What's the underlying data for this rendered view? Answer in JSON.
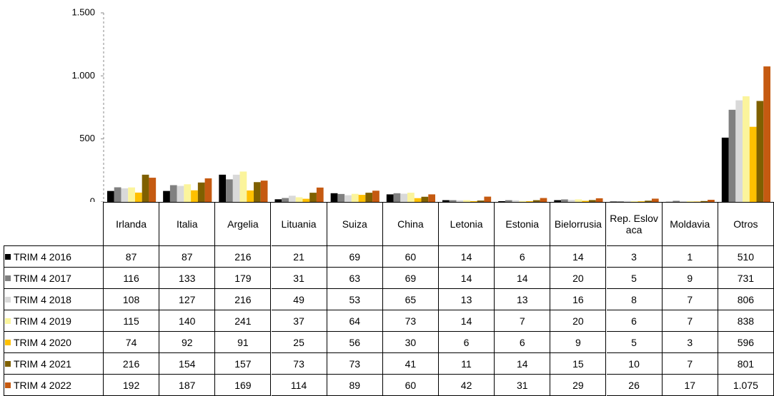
{
  "chart_data": {
    "type": "bar",
    "categories": [
      "Irlanda",
      "Italia",
      "Argelia",
      "Lituania",
      "Suiza",
      "China",
      "Letonia",
      "Estonia",
      "Bielorrusia",
      "Rep. Eslovaca",
      "Moldavia",
      "Otros"
    ],
    "series": [
      {
        "name": "TRIM 4 2016",
        "color": "#000000",
        "values": [
          87,
          87,
          216,
          21,
          69,
          60,
          14,
          6,
          14,
          3,
          1,
          510
        ]
      },
      {
        "name": "TRIM 4 2017",
        "color": "#808080",
        "values": [
          116,
          133,
          179,
          31,
          63,
          69,
          14,
          14,
          20,
          5,
          9,
          731
        ]
      },
      {
        "name": "TRIM 4 2018",
        "color": "#d9d9d9",
        "values": [
          108,
          127,
          216,
          49,
          53,
          65,
          13,
          13,
          16,
          8,
          7,
          806
        ]
      },
      {
        "name": "TRIM 4 2019",
        "color": "#fbf49c",
        "values": [
          115,
          140,
          241,
          37,
          64,
          73,
          14,
          7,
          20,
          6,
          7,
          838
        ]
      },
      {
        "name": "TRIM 4 2020",
        "color": "#ffc000",
        "values": [
          74,
          92,
          91,
          25,
          56,
          30,
          6,
          6,
          9,
          5,
          3,
          596
        ]
      },
      {
        "name": "TRIM 4 2021",
        "color": "#7f6000",
        "values": [
          216,
          154,
          157,
          73,
          73,
          41,
          11,
          14,
          15,
          10,
          7,
          801
        ]
      },
      {
        "name": "TRIM 4 2022",
        "color": "#c55a11",
        "values": [
          192,
          187,
          169,
          114,
          89,
          60,
          42,
          31,
          29,
          26,
          17,
          1075
        ],
        "value_labels": [
          "192",
          "187",
          "169",
          "114",
          "89",
          "60",
          "42",
          "31",
          "29",
          "26",
          "17",
          "1.075"
        ]
      }
    ],
    "ylim": [
      0,
      1500
    ],
    "yticks": [
      0,
      500,
      {
        "value": 1000,
        "label": "1.000"
      },
      {
        "value": 1500,
        "label": "1.500"
      }
    ]
  }
}
